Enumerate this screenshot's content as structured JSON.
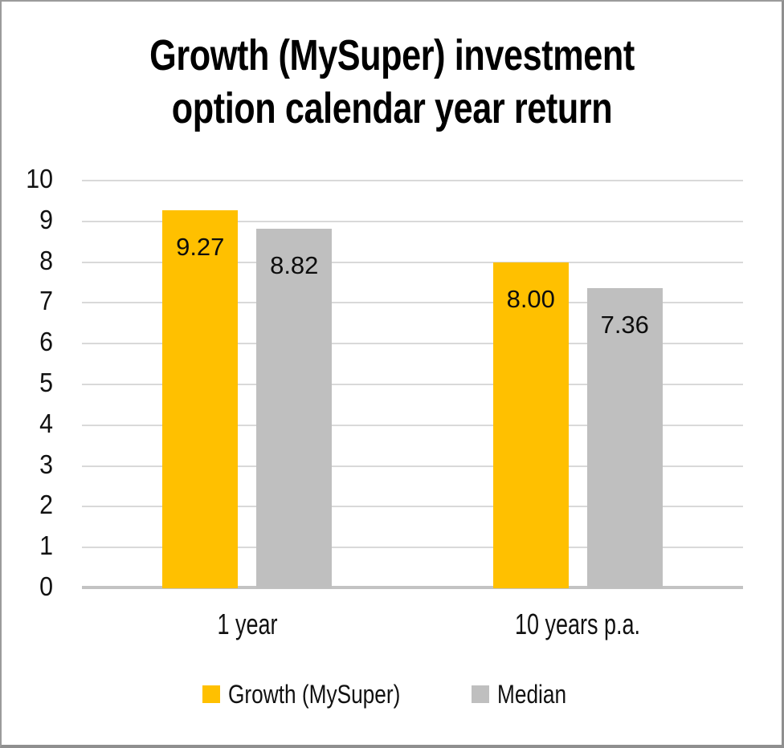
{
  "chart_data": {
    "type": "bar",
    "title": "Growth (MySuper) investment option calendar year return",
    "categories": [
      "1 year",
      "10 years p.a."
    ],
    "series": [
      {
        "name": "Growth (MySuper)",
        "color": "#FFC000",
        "values": [
          9.27,
          8.0
        ],
        "labels": [
          "9.27",
          "8.00"
        ]
      },
      {
        "name": "Median",
        "color": "#BFBFBF",
        "values": [
          8.82,
          7.36
        ],
        "labels": [
          "8.82",
          "7.36"
        ]
      }
    ],
    "ylim": [
      0,
      10
    ],
    "yticks": [
      0,
      1,
      2,
      3,
      4,
      5,
      6,
      7,
      8,
      9,
      10
    ],
    "grid": true,
    "legend_position": "bottom",
    "data_labels": "inside-end",
    "colors": {
      "gridline": "#D9D9D9",
      "axis_line": "#C3C3C3",
      "text": "#111111",
      "frame_border": "#9B9B9B",
      "background": "#FFFFFF"
    }
  }
}
